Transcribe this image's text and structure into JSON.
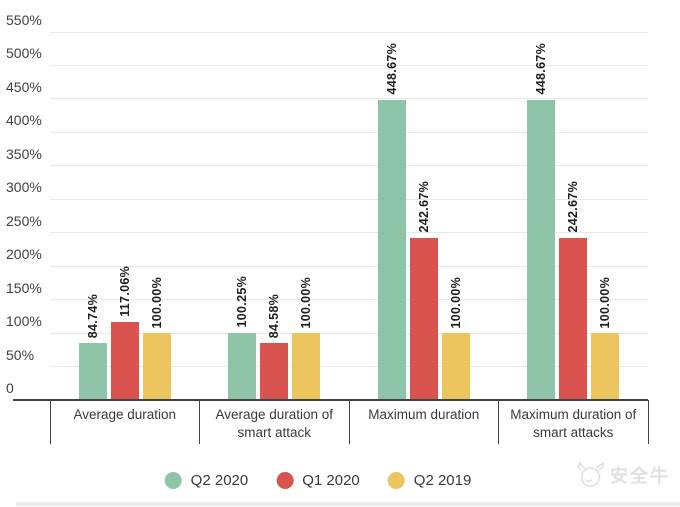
{
  "chart_data": {
    "type": "bar",
    "title": "",
    "categories": [
      "Average duration",
      "Average duration of smart attack",
      "Maximum duration",
      "Maximum duration of smart attacks"
    ],
    "series": [
      {
        "name": "Q2 2020",
        "color": "#8ec4a8",
        "values": [
          84.74,
          100.25,
          448.67,
          448.67
        ],
        "labels": [
          "84.74%",
          "100.25%",
          "448.67%",
          "448.67%"
        ]
      },
      {
        "name": "Q1 2020",
        "color": "#d9534f",
        "values": [
          117.06,
          84.58,
          242.67,
          242.67
        ],
        "labels": [
          "117.06%",
          "84.58%",
          "242.67%",
          "242.67%"
        ]
      },
      {
        "name": "Q2 2019",
        "color": "#ecc55f",
        "values": [
          100.0,
          100.0,
          100.0,
          100.0
        ],
        "labels": [
          "100.00%",
          "100.00%",
          "100.00%",
          "100.00%"
        ]
      }
    ],
    "y_axis": {
      "min": 0,
      "max": 550,
      "step": 50,
      "tick_labels": [
        "0",
        "50%",
        "100%",
        "150%",
        "200%",
        "250%",
        "300%",
        "350%",
        "400%",
        "450%",
        "500%",
        "550%"
      ]
    },
    "grid": true,
    "legend_position": "bottom",
    "xlabel": "",
    "ylabel": ""
  },
  "watermark": {
    "text": "安全牛"
  },
  "colors": {
    "background": "#ffffff",
    "axis": "#424242",
    "gridline": "#e9e9e9",
    "tick_label": "#3f3f3f",
    "category_label": "#3a3a3a",
    "value_label": "#1f1f1f",
    "watermark": "#e0e0e0",
    "bottom_strip": "#eceaeb"
  }
}
